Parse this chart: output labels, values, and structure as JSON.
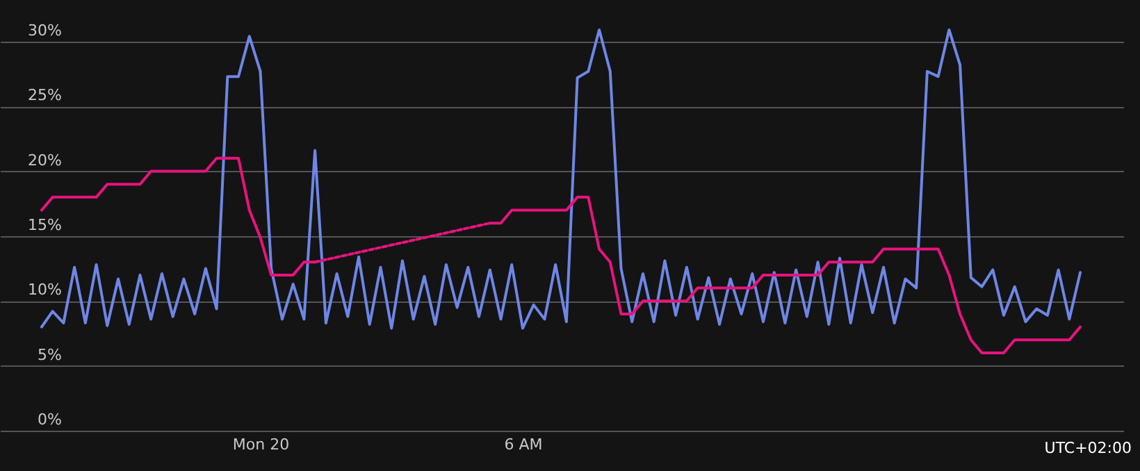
{
  "chart_data": {
    "type": "line",
    "categories": [
      null,
      null,
      null,
      null,
      null,
      null,
      null,
      null,
      null,
      null,
      null,
      null,
      null,
      null,
      null,
      null,
      null,
      null,
      null,
      null,
      "Mon 20",
      null,
      null,
      null,
      null,
      null,
      null,
      null,
      null,
      null,
      null,
      null,
      null,
      null,
      null,
      null,
      null,
      null,
      null,
      null,
      null,
      null,
      null,
      null,
      "6 AM",
      null,
      null,
      null,
      null,
      null,
      null,
      null,
      null,
      null,
      null,
      null,
      null,
      null,
      null,
      null,
      null,
      null,
      null,
      null,
      null,
      null,
      null,
      null,
      null,
      null,
      null,
      null,
      null,
      null,
      null,
      null,
      null,
      null,
      null,
      null,
      null,
      null,
      null,
      null,
      null,
      null,
      null,
      null,
      null,
      null,
      null,
      null,
      null,
      null,
      null,
      null
    ],
    "series": [
      {
        "color": "#6e86e6",
        "values": [
          8.0,
          9.2,
          8.3,
          12.6,
          8.3,
          12.8,
          8.1,
          11.7,
          8.2,
          12.0,
          8.6,
          12.1,
          8.8,
          11.7,
          9.0,
          12.5,
          9.4,
          27.3,
          27.3,
          30.4,
          27.7,
          12.5,
          8.6,
          11.3,
          8.6,
          21.6,
          8.3,
          12.1,
          8.8,
          13.4,
          8.2,
          12.6,
          7.9,
          13.1,
          8.6,
          11.9,
          8.2,
          12.8,
          9.5,
          12.6,
          8.8,
          12.4,
          8.6,
          12.8,
          7.9,
          9.7,
          8.6,
          12.8,
          8.4,
          27.2,
          27.7,
          30.9,
          27.7,
          12.5,
          8.4,
          12.1,
          8.4,
          13.1,
          8.9,
          12.6,
          8.6,
          11.8,
          8.2,
          11.7,
          9.0,
          12.1,
          8.4,
          12.2,
          8.3,
          12.4,
          8.8,
          13.0,
          8.2,
          13.3,
          8.3,
          12.8,
          9.1,
          12.6,
          8.3,
          11.7,
          11.0,
          27.7,
          27.3,
          30.9,
          28.2,
          11.8,
          11.1,
          12.4,
          8.9,
          11.1,
          8.4,
          9.4,
          8.9,
          12.4,
          8.6,
          12.2
        ]
      },
      {
        "color": "#e8137e",
        "values": [
          17,
          18,
          18,
          18,
          18,
          18,
          19,
          19,
          19,
          19,
          20,
          20,
          20,
          20,
          20,
          20,
          21,
          21,
          21,
          17,
          14.9,
          12,
          12,
          12,
          13,
          13,
          null,
          null,
          null,
          null,
          null,
          null,
          null,
          null,
          null,
          null,
          null,
          null,
          null,
          null,
          null,
          16,
          16,
          17,
          17,
          17,
          17,
          17,
          17,
          18,
          18,
          14,
          13,
          9,
          9,
          10,
          10,
          10,
          10,
          10,
          11,
          11,
          11,
          11,
          11,
          11,
          12,
          12,
          12,
          12,
          12,
          12,
          13,
          13,
          13,
          13,
          13,
          14,
          14,
          14,
          14,
          14,
          14,
          12,
          9,
          7,
          6,
          6,
          6,
          7,
          7,
          7,
          7,
          7,
          7,
          8
        ]
      }
    ],
    "ylim": [
      0,
      33.2
    ],
    "yticks": [
      {
        "value": 0,
        "label": "0%"
      },
      {
        "value": 5,
        "label": "5%"
      },
      {
        "value": 10,
        "label": "10%"
      },
      {
        "value": 15,
        "label": "15%"
      },
      {
        "value": 20,
        "label": "20%"
      },
      {
        "value": 25,
        "label": "25%"
      },
      {
        "value": 30,
        "label": "30%"
      }
    ],
    "grid": "y",
    "annotations": [
      "UTC+02:00"
    ]
  }
}
